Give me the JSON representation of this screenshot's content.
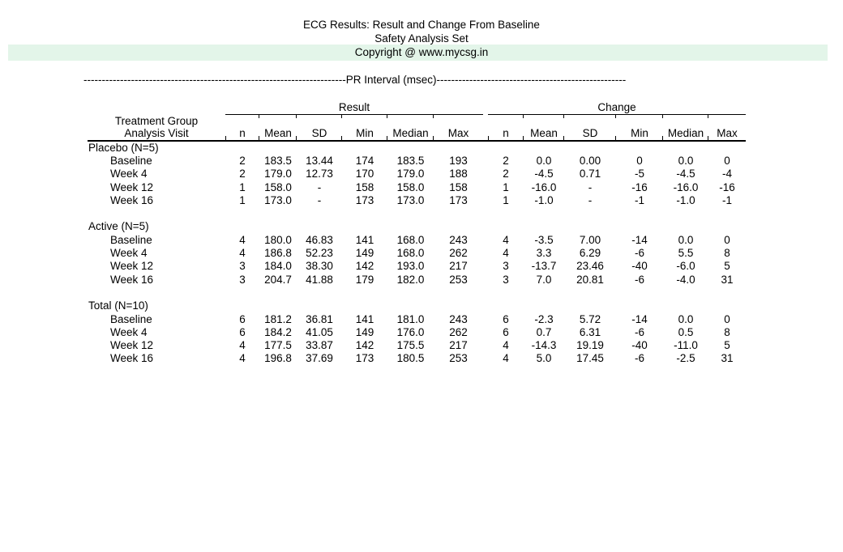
{
  "page": {
    "title_line1": "ECG Results: Result and Change From Baseline",
    "title_line2": "Safety Analysis Set",
    "copyright": "Copyright @ www.mycsg.in"
  },
  "colors": {
    "highlight_band": "#e3f5e9"
  },
  "section_divider": {
    "dashes_left": "------------------------------------------------------------------------",
    "label": "PR Interval (msec)",
    "dashes_right": "----------------------------------------------------"
  },
  "table": {
    "row_header_line1": "Treatment Group",
    "row_header_line2": "Analysis Visit",
    "group_headers": {
      "result": "Result",
      "change": "Change"
    },
    "stat_columns": [
      "n",
      "Mean",
      "SD",
      "Min",
      "Median",
      "Max"
    ],
    "groups": [
      {
        "label": "Placebo (N=5)",
        "rows": [
          {
            "visit": "Baseline",
            "result": [
              "2",
              "183.5",
              "13.44",
              "174",
              "183.5",
              "193"
            ],
            "change": [
              "2",
              "0.0",
              "0.00",
              "0",
              "0.0",
              "0"
            ]
          },
          {
            "visit": "Week 4",
            "result": [
              "2",
              "179.0",
              "12.73",
              "170",
              "179.0",
              "188"
            ],
            "change": [
              "2",
              "-4.5",
              "0.71",
              "-5",
              "-4.5",
              "-4"
            ]
          },
          {
            "visit": "Week 12",
            "result": [
              "1",
              "158.0",
              "-",
              "158",
              "158.0",
              "158"
            ],
            "change": [
              "1",
              "-16.0",
              "-",
              "-16",
              "-16.0",
              "-16"
            ]
          },
          {
            "visit": "Week 16",
            "result": [
              "1",
              "173.0",
              "-",
              "173",
              "173.0",
              "173"
            ],
            "change": [
              "1",
              "-1.0",
              "-",
              "-1",
              "-1.0",
              "-1"
            ]
          }
        ]
      },
      {
        "label": "Active (N=5)",
        "rows": [
          {
            "visit": "Baseline",
            "result": [
              "4",
              "180.0",
              "46.83",
              "141",
              "168.0",
              "243"
            ],
            "change": [
              "4",
              "-3.5",
              "7.00",
              "-14",
              "0.0",
              "0"
            ]
          },
          {
            "visit": "Week 4",
            "result": [
              "4",
              "186.8",
              "52.23",
              "149",
              "168.0",
              "262"
            ],
            "change": [
              "4",
              "3.3",
              "6.29",
              "-6",
              "5.5",
              "8"
            ]
          },
          {
            "visit": "Week 12",
            "result": [
              "3",
              "184.0",
              "38.30",
              "142",
              "193.0",
              "217"
            ],
            "change": [
              "3",
              "-13.7",
              "23.46",
              "-40",
              "-6.0",
              "5"
            ]
          },
          {
            "visit": "Week 16",
            "result": [
              "3",
              "204.7",
              "41.88",
              "179",
              "182.0",
              "253"
            ],
            "change": [
              "3",
              "7.0",
              "20.81",
              "-6",
              "-4.0",
              "31"
            ]
          }
        ]
      },
      {
        "label": "Total (N=10)",
        "rows": [
          {
            "visit": "Baseline",
            "result": [
              "6",
              "181.2",
              "36.81",
              "141",
              "181.0",
              "243"
            ],
            "change": [
              "6",
              "-2.3",
              "5.72",
              "-14",
              "0.0",
              "0"
            ]
          },
          {
            "visit": "Week 4",
            "result": [
              "6",
              "184.2",
              "41.05",
              "149",
              "176.0",
              "262"
            ],
            "change": [
              "6",
              "0.7",
              "6.31",
              "-6",
              "0.5",
              "8"
            ]
          },
          {
            "visit": "Week 12",
            "result": [
              "4",
              "177.5",
              "33.87",
              "142",
              "175.5",
              "217"
            ],
            "change": [
              "4",
              "-14.3",
              "19.19",
              "-40",
              "-11.0",
              "5"
            ]
          },
          {
            "visit": "Week 16",
            "result": [
              "4",
              "196.8",
              "37.69",
              "173",
              "180.5",
              "253"
            ],
            "change": [
              "4",
              "5.0",
              "17.45",
              "-6",
              "-2.5",
              "31"
            ]
          }
        ]
      }
    ]
  }
}
